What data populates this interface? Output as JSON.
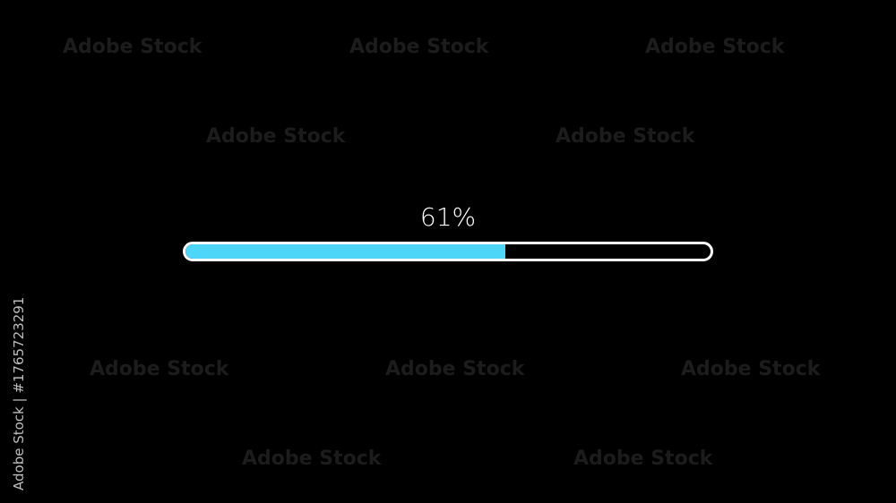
{
  "progress": {
    "label": "61%",
    "value_percent": 61,
    "fill_color": "#4dd6f7",
    "track_border_color": "#ffffff"
  },
  "watermark": {
    "text": "Adobe Stock",
    "side_text": "Adobe Stock | #1765723291"
  }
}
